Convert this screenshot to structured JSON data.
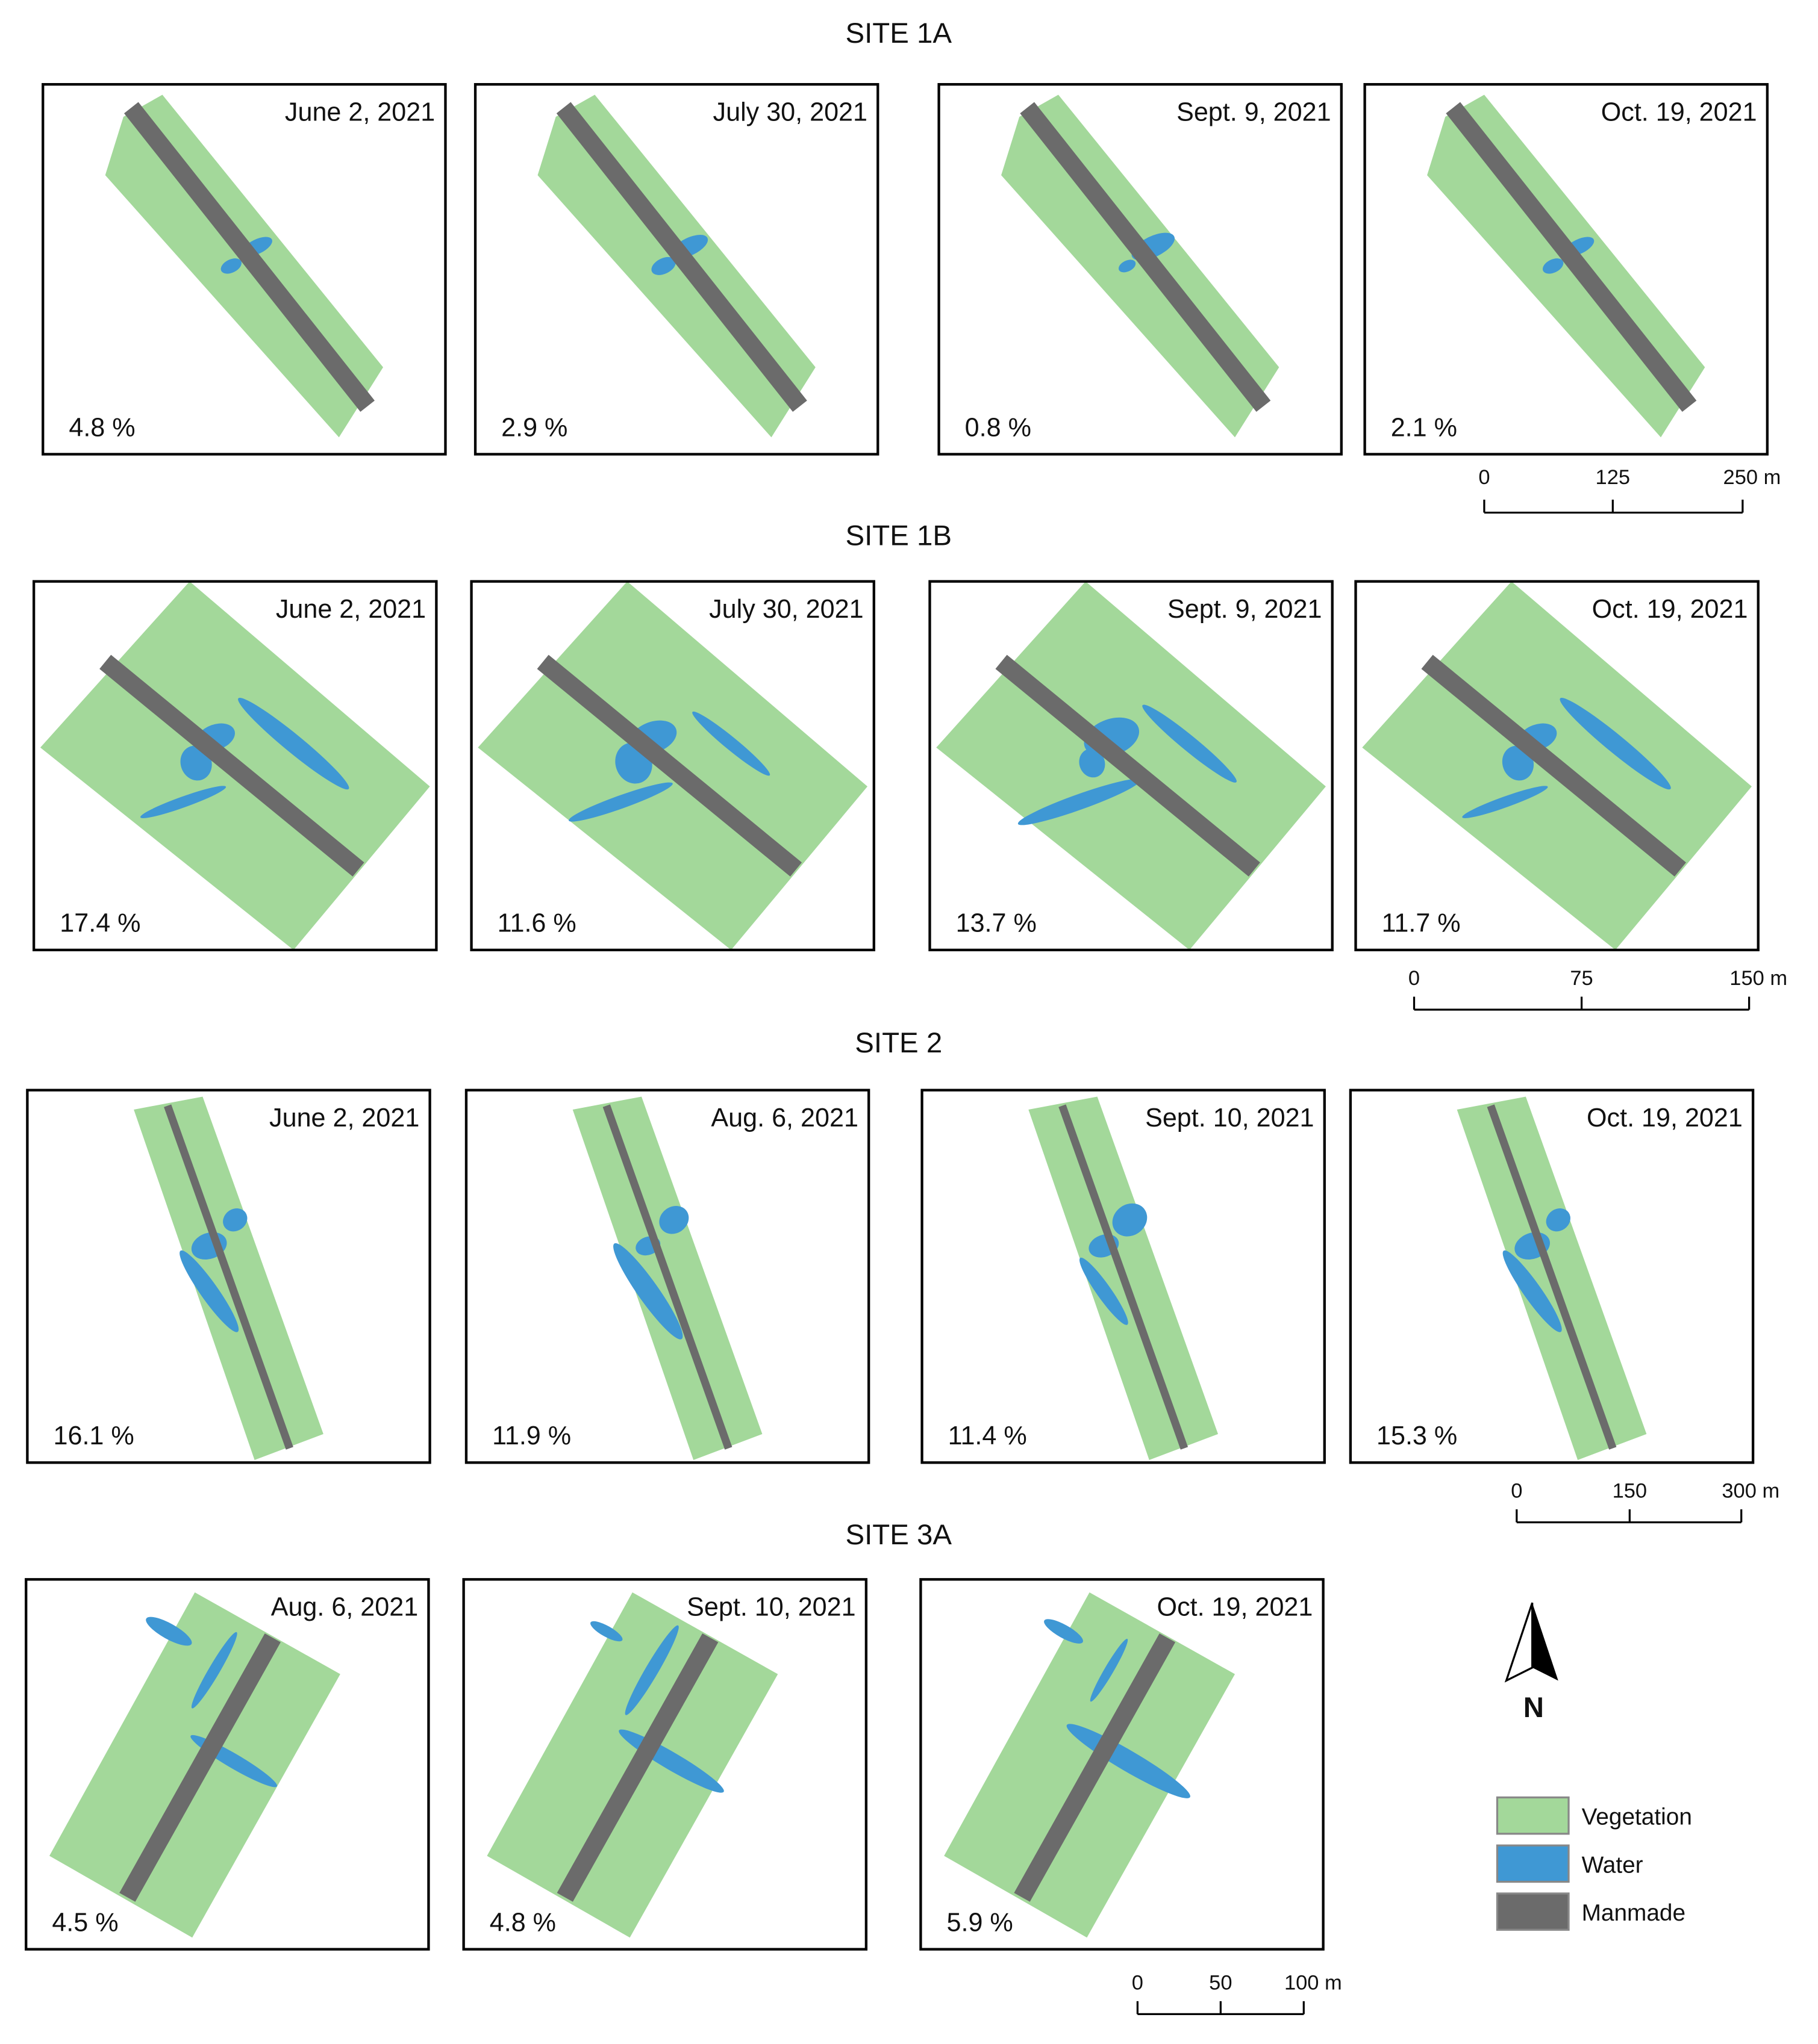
{
  "sites": [
    {
      "title": "SITE 1A",
      "panels": [
        {
          "date": "June 2, 2021",
          "percent": "4.8 %"
        },
        {
          "date": "July 30, 2021",
          "percent": "2.9 %"
        },
        {
          "date": "Sept. 9, 2021",
          "percent": "0.8 %"
        },
        {
          "date": "Oct. 19, 2021",
          "percent": "2.1 %"
        }
      ],
      "scale": [
        "0",
        "125",
        "250 m"
      ]
    },
    {
      "title": "SITE 1B",
      "panels": [
        {
          "date": "June 2, 2021",
          "percent": "17.4 %"
        },
        {
          "date": "July 30, 2021",
          "percent": "11.6 %"
        },
        {
          "date": "Sept. 9, 2021",
          "percent": "13.7 %"
        },
        {
          "date": "Oct. 19, 2021",
          "percent": "11.7 %"
        }
      ],
      "scale": [
        "0",
        "75",
        "150 m"
      ]
    },
    {
      "title": "SITE 2",
      "panels": [
        {
          "date": "June 2, 2021",
          "percent": "16.1 %"
        },
        {
          "date": "Aug. 6, 2021",
          "percent": "11.9 %"
        },
        {
          "date": "Sept. 10, 2021",
          "percent": "11.4 %"
        },
        {
          "date": "Oct. 19, 2021",
          "percent": "15.3 %"
        }
      ],
      "scale": [
        "0",
        "150",
        "300 m"
      ]
    },
    {
      "title": "SITE 3A",
      "panels": [
        {
          "date": "Aug. 6, 2021",
          "percent": "4.5 %"
        },
        {
          "date": "Sept. 10, 2021",
          "percent": "4.8 %"
        },
        {
          "date": "Oct. 19, 2021",
          "percent": "5.9 %"
        }
      ],
      "scale": [
        "0",
        "50",
        "100 m"
      ]
    }
  ],
  "north": "N",
  "legend": [
    "Vegetation",
    "Water",
    "Manmade"
  ]
}
